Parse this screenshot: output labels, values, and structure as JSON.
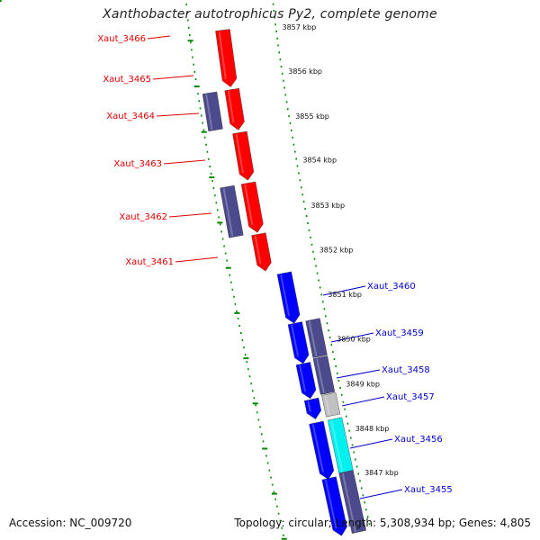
{
  "title": "Xanthobacter autotrophicus Py2, complete genome",
  "footer": {
    "accession": "Accession: NC_009720",
    "summary": "Topology: circular; Length: 5,308,934 bp; Genes: 4,805"
  },
  "colors": {
    "forward_gene": "#ff0000",
    "reverse_gene": "#0000ff",
    "cds_purple": "#4a4a8c",
    "cds_gray": "#c0c0c0",
    "cds_cyan": "#00f0f0",
    "backbone": "#888888",
    "tick_green": "#008800",
    "label_red": "#dd0000",
    "label_blue": "#0000cc"
  },
  "kbp_labels": [
    "3857 kbp",
    "3856 kbp",
    "3855 kbp",
    "3854 kbp",
    "3853 kbp",
    "3852 kbp",
    "3851 kbp",
    "3850 kbp",
    "3849 kbp",
    "3848 kbp",
    "3847 kbp"
  ],
  "gene_labels_red": [
    "Xaut_3466",
    "Xaut_3465",
    "Xaut_3464",
    "Xaut_3463",
    "Xaut_3462",
    "Xaut_3461"
  ],
  "gene_labels_blue": [
    "Xaut_3460",
    "Xaut_3459",
    "Xaut_3458",
    "Xaut_3457",
    "Xaut_3456",
    "Xaut_3455"
  ]
}
